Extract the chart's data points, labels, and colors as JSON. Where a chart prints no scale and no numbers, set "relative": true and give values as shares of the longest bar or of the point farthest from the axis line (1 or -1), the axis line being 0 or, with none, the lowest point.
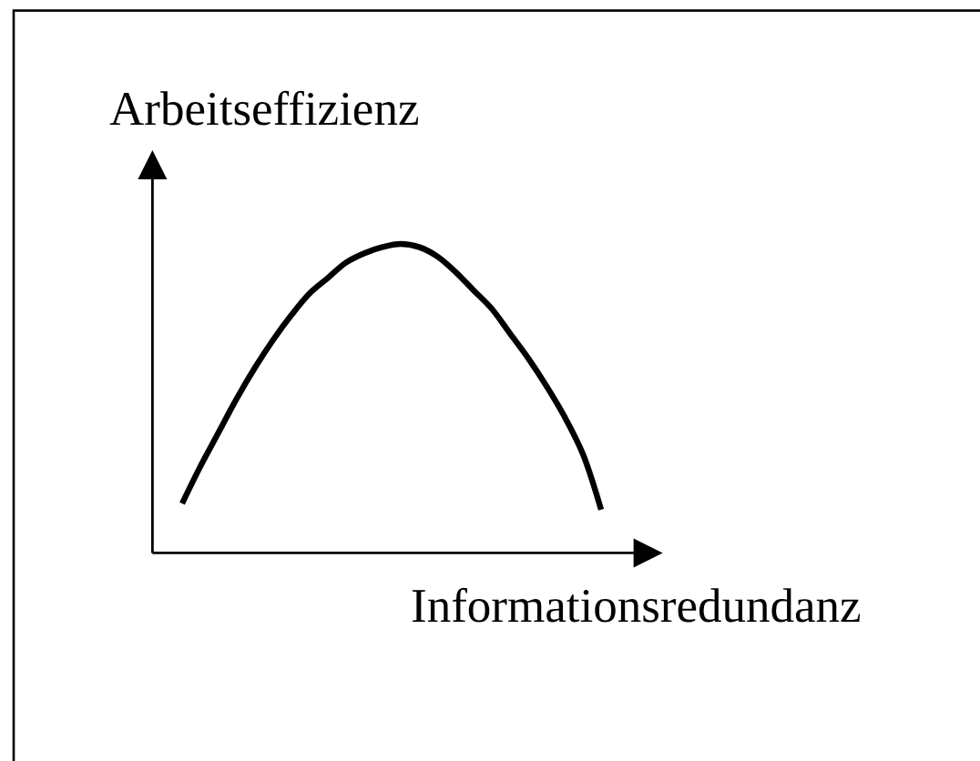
{
  "chart_data": {
    "type": "line",
    "xlabel": "Informationsredundanz",
    "ylabel": "Arbeitseffizienz",
    "relative": true,
    "color": "#000000",
    "categories": [
      null,
      null,
      null,
      null,
      null,
      null,
      null,
      null,
      null,
      null,
      null,
      null,
      null,
      null,
      null,
      null,
      null,
      null,
      null,
      null,
      null,
      null,
      null,
      null
    ],
    "values": [
      0.16,
      0.28,
      0.39,
      0.5,
      0.6,
      0.69,
      0.77,
      0.84,
      0.89,
      0.94,
      0.97,
      0.99,
      1,
      0.99,
      0.96,
      0.91,
      0.85,
      0.79,
      0.71,
      0.63,
      0.54,
      0.44,
      0.32,
      0.14
    ]
  }
}
